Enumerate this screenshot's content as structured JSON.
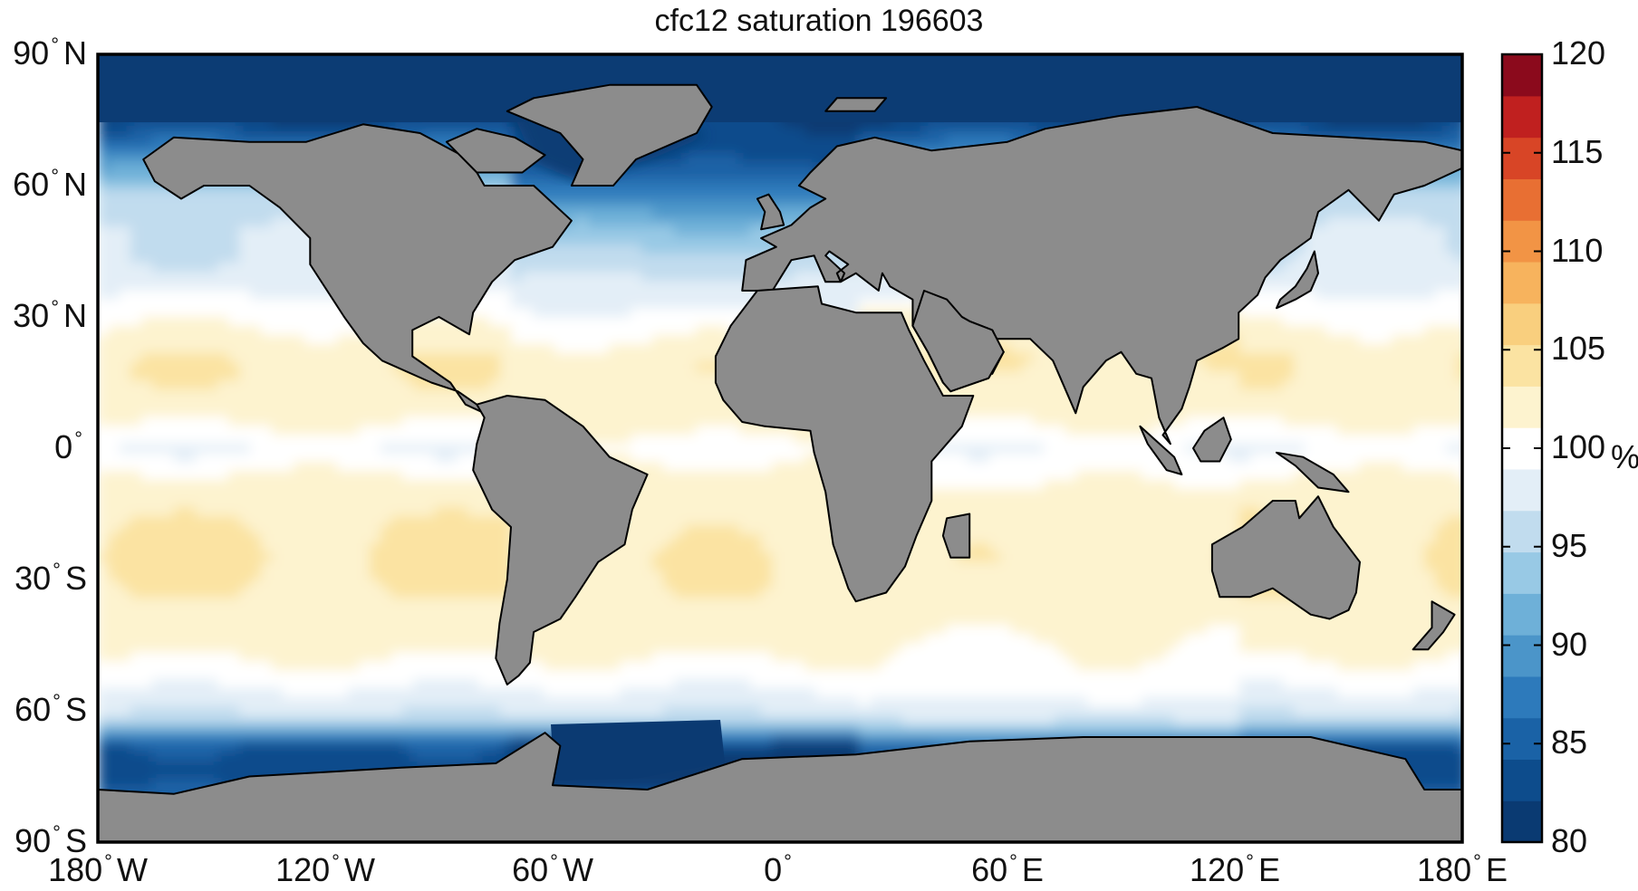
{
  "title": "cfc12 saturation 196603",
  "lat_labels": [
    {
      "deg": "90",
      "hemi": "N"
    },
    {
      "deg": "60",
      "hemi": "N"
    },
    {
      "deg": "30",
      "hemi": "N"
    },
    {
      "deg": "0",
      "hemi": ""
    },
    {
      "deg": "30",
      "hemi": "S"
    },
    {
      "deg": "60",
      "hemi": "S"
    },
    {
      "deg": "90",
      "hemi": "S"
    }
  ],
  "lon_labels": [
    {
      "deg": "180",
      "hemi": "W"
    },
    {
      "deg": "120",
      "hemi": "W"
    },
    {
      "deg": "60",
      "hemi": "W"
    },
    {
      "deg": "0",
      "hemi": ""
    },
    {
      "deg": "60",
      "hemi": "E"
    },
    {
      "deg": "120",
      "hemi": "E"
    },
    {
      "deg": "180",
      "hemi": "E"
    }
  ],
  "colorbar": {
    "min": 80,
    "max": 120,
    "ticks": [
      "120",
      "115",
      "110",
      "105",
      "100",
      "95",
      "90",
      "85",
      "80"
    ],
    "unit": "%",
    "colors": [
      "#0a3a72",
      "#0d4c8c",
      "#1a62a6",
      "#2d7abb",
      "#4b95c9",
      "#6eb0d8",
      "#98c9e5",
      "#c1dcee",
      "#e3eef7",
      "#ffffff",
      "#fdf3cf",
      "#fbe3a2",
      "#f9cf7e",
      "#f7b35d",
      "#f29445",
      "#e86f33",
      "#d84526",
      "#c0201f",
      "#8b0a1c"
    ]
  },
  "colors": {
    "land": "#8c8c8c",
    "coast": "#000000",
    "deep_undersaturated": "#0c3c74",
    "saturated": "#ffffff",
    "oversaturated": "#f8dd9a"
  },
  "chart_data": {
    "type": "heatmap",
    "title": "cfc12 saturation 196603",
    "x_axis": {
      "range": [
        -180,
        180
      ],
      "ticks": [
        -180,
        -120,
        -60,
        0,
        60,
        120,
        180
      ]
    },
    "y_axis": {
      "range": [
        -90,
        90
      ],
      "ticks": [
        90,
        60,
        30,
        0,
        -30,
        -60,
        -90
      ]
    },
    "color_scale": {
      "min": 80,
      "max": 120,
      "unit": "%"
    },
    "field": {
      "lat_nodes": [
        -85,
        -75,
        -68,
        -62,
        -55,
        -45,
        -35,
        -25,
        -15,
        -8,
        -3,
        0,
        5,
        12,
        20,
        28,
        35,
        42,
        50,
        58,
        65,
        75,
        85
      ],
      "basins": [
        {
          "name_key": "pacific",
          "values": [
            88,
            83,
            84,
            96,
            99,
            102,
            103,
            103.5,
            103,
            102,
            100,
            99,
            101,
            103,
            103,
            101,
            99,
            97,
            97,
            95,
            90,
            82,
            82
          ]
        },
        {
          "name_key": "atlantic",
          "values": [
            88,
            80,
            82,
            96,
            99,
            102,
            103,
            103,
            102.5,
            102,
            101,
            100,
            102,
            103,
            102.5,
            100,
            98,
            96,
            93,
            88,
            84,
            82,
            82
          ]
        },
        {
          "name_key": "indian",
          "values": [
            88,
            84,
            86,
            97,
            100,
            101,
            102,
            102.5,
            102,
            101,
            100,
            99,
            101,
            102,
            103,
            102,
            101,
            101,
            101,
            101,
            101,
            101,
            101
          ]
        }
      ]
    }
  }
}
